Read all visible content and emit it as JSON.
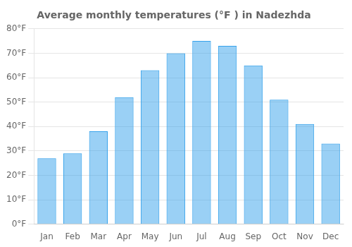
{
  "chart_data": {
    "type": "bar",
    "title": "Average monthly temperatures (°F ) in Nadezhda",
    "categories": [
      "Jan",
      "Feb",
      "Mar",
      "Apr",
      "May",
      "Jun",
      "Jul",
      "Aug",
      "Sep",
      "Oct",
      "Nov",
      "Dec"
    ],
    "values": [
      27,
      29,
      38,
      52,
      63,
      70,
      75,
      73,
      65,
      51,
      41,
      33
    ],
    "ylim": [
      0,
      80
    ],
    "yticks": [
      {
        "value": 0,
        "label": "0°F"
      },
      {
        "value": 10,
        "label": "10°F"
      },
      {
        "value": 20,
        "label": "20°F"
      },
      {
        "value": 30,
        "label": "30°F"
      },
      {
        "value": 40,
        "label": "40°F"
      },
      {
        "value": 50,
        "label": "50°F"
      },
      {
        "value": 60,
        "label": "60°F"
      },
      {
        "value": 70,
        "label": "70°F"
      },
      {
        "value": 80,
        "label": "80°F"
      }
    ],
    "grid": true
  }
}
